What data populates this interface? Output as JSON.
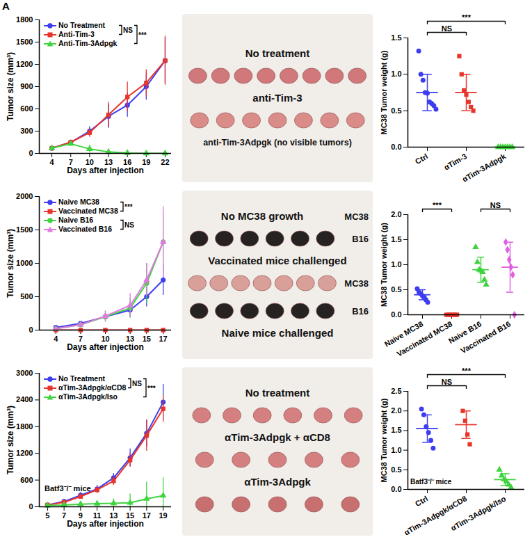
{
  "panel_label": "A",
  "chart_data": [
    {
      "type": "line",
      "xlabel": "Days after injection",
      "ylabel": "Tumor size (mm³)",
      "x": [
        4,
        7,
        10,
        13,
        16,
        19,
        22
      ],
      "xlim": [
        2,
        23
      ],
      "xticks": [
        4,
        7,
        10,
        13,
        16,
        19,
        22
      ],
      "ylim": [
        0,
        1800
      ],
      "yticks": [
        0,
        300,
        600,
        900,
        1200,
        1500,
        1800
      ],
      "legend": "top-left",
      "series": [
        {
          "name": "No Treatment",
          "color": "#3d3df0",
          "marker": "circle",
          "values": [
            70,
            150,
            300,
            500,
            650,
            900,
            1250
          ],
          "errors": [
            15,
            30,
            60,
            160,
            160,
            180,
            300
          ]
        },
        {
          "name": "Anti-Tim-3",
          "color": "#e8352b",
          "marker": "square",
          "values": [
            70,
            150,
            280,
            520,
            760,
            950,
            1250
          ],
          "errors": [
            15,
            30,
            60,
            170,
            200,
            180,
            330
          ]
        },
        {
          "name": "Anti-Tim-3Adpgk",
          "color": "#3fd43f",
          "marker": "triangle",
          "values": [
            70,
            130,
            60,
            20,
            5,
            0,
            0
          ],
          "errors": [
            15,
            20,
            50,
            25,
            5,
            0,
            0
          ]
        }
      ],
      "significance": [
        {
          "label": "NS",
          "between": [
            0,
            1
          ]
        },
        {
          "label": "***",
          "between": [
            0,
            2
          ]
        }
      ]
    },
    {
      "type": "photo",
      "lines": [
        {
          "text": "No treatment"
        },
        {
          "tumors": 8,
          "color": "#d0787a"
        },
        {
          "text": "anti-Tim-3"
        },
        {
          "tumors": 7,
          "color": "#d98c88"
        },
        {
          "text": "anti-Tim-3Adpgk (no visible tumors)"
        }
      ]
    },
    {
      "type": "dot",
      "ylabel": "MC38 Tumor weight (g)",
      "ylim": [
        0,
        1.5
      ],
      "yticks": [
        {
          "value": 0,
          "label": "0.0"
        },
        {
          "value": 0.5,
          "label": "0.5"
        },
        {
          "value": 1,
          "label": "1.0"
        },
        {
          "value": 1.5,
          "label": "1.5"
        }
      ],
      "series": [
        {
          "name": "Ctrl",
          "color": "#3d3df0",
          "marker": "circle",
          "values": [
            1.32,
            1.0,
            0.92,
            0.75,
            0.74,
            0.62,
            0.6,
            0.57,
            0.52
          ],
          "mean": 0.75,
          "sd": 0.25
        },
        {
          "name": "αTim-3",
          "color": "#e8352b",
          "marker": "square",
          "values": [
            1.25,
            1.0,
            0.78,
            0.72,
            0.62,
            0.55,
            0.5
          ],
          "mean": 0.75,
          "sd": 0.25
        },
        {
          "name": "αTim-3Adpgk",
          "color": "#3fd43f",
          "marker": "triangle",
          "values": [
            0,
            0,
            0,
            0,
            0,
            0,
            0
          ],
          "mean": 0,
          "sd": 0
        }
      ],
      "significance": [
        {
          "label": "NS",
          "between": [
            0,
            1
          ]
        },
        {
          "label": "***",
          "between": [
            0,
            2
          ]
        }
      ]
    },
    {
      "type": "line",
      "xlabel": "Days after injection",
      "ylabel": "Tumor size (mm³)",
      "x": [
        4,
        7,
        10,
        13,
        15,
        17
      ],
      "xlim": [
        2,
        18
      ],
      "xticks": [
        4,
        7,
        10,
        13,
        15,
        17
      ],
      "ylim": [
        0,
        2000
      ],
      "yticks": [
        0,
        500,
        1000,
        1500,
        2000
      ],
      "legend": "top-left",
      "series": [
        {
          "name": "Naive MC38",
          "color": "#3d3df0",
          "marker": "circle",
          "values": [
            40,
            100,
            200,
            300,
            500,
            750
          ],
          "errors": [
            10,
            20,
            50,
            100,
            150,
            230
          ]
        },
        {
          "name": "Vaccinated MC38",
          "color": "#e8352b",
          "marker": "square",
          "values": [
            0,
            0,
            0,
            0,
            0,
            0
          ],
          "errors": [
            0,
            0,
            0,
            0,
            0,
            0
          ]
        },
        {
          "name": "Naive B16",
          "color": "#3fd43f",
          "marker": "circle",
          "values": [
            20,
            80,
            200,
            330,
            700,
            1320
          ],
          "errors": [
            10,
            30,
            80,
            150,
            300,
            430
          ]
        },
        {
          "name": "Vaccinated B16",
          "color": "#e07ae0",
          "marker": "triangle",
          "values": [
            20,
            80,
            210,
            370,
            750,
            1320
          ],
          "errors": [
            10,
            30,
            80,
            180,
            250,
            530
          ]
        }
      ],
      "significance": [
        {
          "label": "***",
          "between": [
            0,
            1
          ]
        },
        {
          "label": "NS",
          "between": [
            2,
            3
          ]
        }
      ]
    },
    {
      "type": "photo",
      "lines": [
        {
          "text": "No MC38 growth",
          "side_label": "MC38"
        },
        {
          "tumors": 6,
          "color": "#262222",
          "side_label": "B16"
        },
        {
          "text": "Vaccinated mice challenged"
        },
        {
          "tumors": 7,
          "color": "#d9a09a",
          "side_label": "MC38"
        },
        {
          "tumors": 6,
          "color": "#262222",
          "side_label": "B16"
        },
        {
          "text": "Naive mice challenged"
        }
      ]
    },
    {
      "type": "dot",
      "ylabel": "MC38 Tumor weight (g)",
      "ylim": [
        0,
        2
      ],
      "yticks": [
        {
          "value": 0,
          "label": "0.0"
        },
        {
          "value": 0.5,
          "label": "0.5"
        },
        {
          "value": 1,
          "label": "1.0"
        },
        {
          "value": 1.5,
          "label": "1.5"
        },
        {
          "value": 2,
          "label": "2.0"
        }
      ],
      "series": [
        {
          "name": "Naive MC38",
          "color": "#3d3df0",
          "marker": "circle",
          "values": [
            0.52,
            0.45,
            0.42,
            0.38,
            0.35,
            0.3,
            0.25
          ],
          "mean": 0.4,
          "sd": 0.1
        },
        {
          "name": "Vaccinated MC38",
          "color": "#e8352b",
          "marker": "square",
          "values": [
            0,
            0,
            0,
            0,
            0,
            0,
            0
          ],
          "mean": 0,
          "sd": 0
        },
        {
          "name": "Naive B16",
          "color": "#3fd43f",
          "marker": "triangle",
          "values": [
            1.35,
            1.05,
            0.9,
            0.88,
            0.85,
            0.7,
            0.6
          ],
          "mean": 0.9,
          "sd": 0.25
        },
        {
          "name": "Vaccinated B16",
          "color": "#e060e0",
          "marker": "diamond",
          "values": [
            1.45,
            1.3,
            1.1,
            0.95,
            0.8,
            0.0
          ],
          "mean": 0.95,
          "sd": 0.5
        }
      ],
      "significance": [
        {
          "label": "***",
          "between": [
            0,
            1
          ]
        },
        {
          "label": "NS",
          "between": [
            2,
            3
          ]
        }
      ]
    },
    {
      "type": "line",
      "xlabel": "Days after injection",
      "ylabel": "Tumor size (mm³)",
      "annotation": "Batf3⁻/⁻ mice",
      "x": [
        5,
        7,
        9,
        11,
        13,
        15,
        17,
        19
      ],
      "xlim": [
        4,
        20
      ],
      "xticks": [
        5,
        7,
        9,
        11,
        13,
        15,
        17,
        19
      ],
      "ylim": [
        0,
        3000
      ],
      "yticks": [
        0,
        600,
        1200,
        1800,
        2400,
        3000
      ],
      "legend": "top-left",
      "series": [
        {
          "name": "No Treatment",
          "color": "#3d3df0",
          "marker": "circle",
          "values": [
            40,
            120,
            260,
            400,
            650,
            1100,
            1650,
            2350
          ],
          "errors": [
            10,
            30,
            60,
            80,
            100,
            200,
            300,
            400
          ]
        },
        {
          "name": "αTim-3Adpgk/αCD8",
          "color": "#e8352b",
          "marker": "square",
          "values": [
            40,
            100,
            230,
            380,
            580,
            1050,
            1600,
            2200
          ],
          "errors": [
            10,
            30,
            50,
            80,
            100,
            150,
            350,
            300
          ]
        },
        {
          "name": "αTim-3Adpgk/Iso",
          "color": "#3fd43f",
          "marker": "triangle",
          "values": [
            30,
            40,
            60,
            70,
            80,
            90,
            180,
            250
          ],
          "errors": [
            10,
            20,
            40,
            60,
            100,
            200,
            380,
            400
          ]
        }
      ],
      "significance": [
        {
          "label": "NS",
          "between": [
            0,
            1
          ]
        },
        {
          "label": "***",
          "between": [
            0,
            2
          ]
        }
      ]
    },
    {
      "type": "photo",
      "lines": [
        {
          "text": "No treatment"
        },
        {
          "tumors": 6,
          "color": "#d58080"
        },
        {
          "text": "αTim-3Adpgk + αCD8"
        },
        {
          "tumors": 5,
          "color": "#d58080"
        },
        {
          "text": "αTim-3Adpgk"
        },
        {
          "tumors": 5,
          "color": "#c87070"
        }
      ]
    },
    {
      "type": "dot",
      "ylabel": "MC38 Tumor weight (g)",
      "annotation": "Batf3⁻/⁻ mice",
      "ylim": [
        0,
        2.5
      ],
      "yticks": [
        {
          "value": 0,
          "label": "0.0"
        },
        {
          "value": 0.5,
          "label": "0.5"
        },
        {
          "value": 1,
          "label": "1.0"
        },
        {
          "value": 1.5,
          "label": "1.5"
        },
        {
          "value": 2,
          "label": "2.0"
        },
        {
          "value": 2.5,
          "label": "2.5"
        }
      ],
      "series": [
        {
          "name": "Ctrl",
          "color": "#3d3df0",
          "marker": "circle",
          "values": [
            2.05,
            1.9,
            1.6,
            1.45,
            1.25,
            1.05
          ],
          "mean": 1.55,
          "sd": 0.35
        },
        {
          "name": "αTim-3Adpgk/αCD8",
          "color": "#e8352b",
          "marker": "square",
          "values": [
            2.0,
            1.75,
            1.4,
            1.15
          ],
          "mean": 1.65,
          "sd": 0.35
        },
        {
          "name": "αTim-3Adpgk/Iso",
          "color": "#3fd43f",
          "marker": "triangle",
          "values": [
            0.5,
            0.35,
            0.25,
            0.2,
            0.12,
            0.05
          ],
          "mean": 0.25,
          "sd": 0.15
        }
      ],
      "significance": [
        {
          "label": "NS",
          "between": [
            0,
            1
          ]
        },
        {
          "label": "***",
          "between": [
            0,
            2
          ]
        }
      ]
    }
  ]
}
